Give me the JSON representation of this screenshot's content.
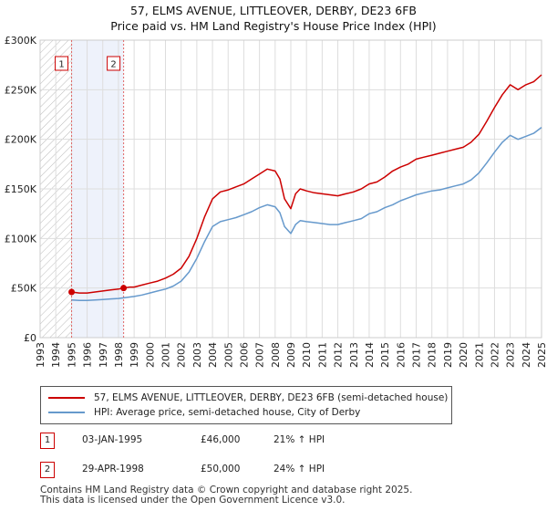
{
  "title": {
    "line1": "57, ELMS AVENUE, LITTLEOVER, DERBY, DE23 6FB",
    "line2": "Price paid vs. HM Land Registry's House Price Index (HPI)"
  },
  "chart_data": {
    "type": "line",
    "ylim": [
      0,
      300000
    ],
    "xlim": [
      1993,
      2025
    ],
    "y_ticks": [
      {
        "value": 0,
        "label": "£0"
      },
      {
        "value": 50000,
        "label": "£50K"
      },
      {
        "value": 100000,
        "label": "£100K"
      },
      {
        "value": 150000,
        "label": "£150K"
      },
      {
        "value": 200000,
        "label": "£200K"
      },
      {
        "value": 250000,
        "label": "£250K"
      },
      {
        "value": 300000,
        "label": "£300K"
      }
    ],
    "x_ticks": [
      "1993",
      "1994",
      "1995",
      "1996",
      "1997",
      "1998",
      "1999",
      "2000",
      "2001",
      "2002",
      "2003",
      "2004",
      "2005",
      "2006",
      "2007",
      "2008",
      "2009",
      "2010",
      "2011",
      "2012",
      "2013",
      "2014",
      "2015",
      "2016",
      "2017",
      "2018",
      "2019",
      "2020",
      "2021",
      "2022",
      "2023",
      "2024",
      "2025"
    ],
    "grid": true,
    "colors": {
      "property": "#cc0000",
      "hpi": "#6699cc",
      "band": "#eef2fb",
      "marker_line": "#e06666"
    },
    "series": [
      {
        "name": "57, ELMS AVENUE, LITTLEOVER, DERBY, DE23 6FB (semi-detached house)",
        "color": "#cc0000",
        "x": [
          1995.0,
          1995.5,
          1996.0,
          1996.5,
          1997.0,
          1997.5,
          1998.0,
          1998.33,
          1998.7,
          1999.0,
          1999.5,
          2000.0,
          2000.5,
          2001.0,
          2001.5,
          2002.0,
          2002.5,
          2003.0,
          2003.5,
          2004.0,
          2004.5,
          2005.0,
          2005.5,
          2006.0,
          2006.5,
          2007.0,
          2007.5,
          2008.0,
          2008.3,
          2008.6,
          2009.0,
          2009.3,
          2009.6,
          2010.0,
          2010.5,
          2011.0,
          2011.5,
          2012.0,
          2012.5,
          2013.0,
          2013.5,
          2014.0,
          2014.5,
          2015.0,
          2015.5,
          2016.0,
          2016.5,
          2017.0,
          2017.5,
          2018.0,
          2018.5,
          2019.0,
          2019.5,
          2020.0,
          2020.5,
          2021.0,
          2021.5,
          2022.0,
          2022.5,
          2023.0,
          2023.5,
          2024.0,
          2024.5,
          2025.0
        ],
        "values": [
          46000,
          45000,
          45000,
          46000,
          47000,
          48000,
          49000,
          50000,
          51000,
          51000,
          53000,
          55000,
          57000,
          60000,
          64000,
          70000,
          82000,
          100000,
          122000,
          140000,
          147000,
          149000,
          152000,
          155000,
          160000,
          165000,
          170000,
          168000,
          160000,
          140000,
          130000,
          145000,
          150000,
          148000,
          146000,
          145000,
          144000,
          143000,
          145000,
          147000,
          150000,
          155000,
          157000,
          162000,
          168000,
          172000,
          175000,
          180000,
          182000,
          184000,
          186000,
          188000,
          190000,
          192000,
          197000,
          205000,
          218000,
          232000,
          245000,
          255000,
          250000,
          255000,
          258000,
          265000
        ]
      },
      {
        "name": "HPI: Average price, semi-detached house, City of Derby",
        "color": "#6699cc",
        "x": [
          1995.0,
          1995.5,
          1996.0,
          1996.5,
          1997.0,
          1997.5,
          1998.0,
          1998.5,
          1999.0,
          1999.5,
          2000.0,
          2000.5,
          2001.0,
          2001.5,
          2002.0,
          2002.5,
          2003.0,
          2003.5,
          2004.0,
          2004.5,
          2005.0,
          2005.5,
          2006.0,
          2006.5,
          2007.0,
          2007.5,
          2008.0,
          2008.3,
          2008.6,
          2009.0,
          2009.3,
          2009.6,
          2010.0,
          2010.5,
          2011.0,
          2011.5,
          2012.0,
          2012.5,
          2013.0,
          2013.5,
          2014.0,
          2014.5,
          2015.0,
          2015.5,
          2016.0,
          2016.5,
          2017.0,
          2017.5,
          2018.0,
          2018.5,
          2019.0,
          2019.5,
          2020.0,
          2020.5,
          2021.0,
          2021.5,
          2022.0,
          2022.5,
          2023.0,
          2023.5,
          2024.0,
          2024.5,
          2025.0
        ],
        "values": [
          38000,
          37500,
          37500,
          38000,
          38500,
          39000,
          39500,
          40500,
          41500,
          43000,
          45000,
          47000,
          49000,
          52000,
          57000,
          66000,
          80000,
          97000,
          112000,
          117000,
          119000,
          121000,
          124000,
          127000,
          131000,
          134000,
          132000,
          126000,
          112000,
          105000,
          114000,
          118000,
          117000,
          116000,
          115000,
          114000,
          114000,
          116000,
          118000,
          120000,
          125000,
          127000,
          131000,
          134000,
          138000,
          141000,
          144000,
          146000,
          148000,
          149000,
          151000,
          153000,
          155000,
          159000,
          166000,
          176000,
          187000,
          197000,
          204000,
          200000,
          203000,
          206000,
          212000
        ]
      }
    ],
    "sales": [
      {
        "label": "1",
        "date": "03-JAN-1995",
        "x": 1995.01,
        "price": 46000,
        "price_label": "£46,000",
        "hpi_label": "21% ↑ HPI"
      },
      {
        "label": "2",
        "date": "29-APR-1998",
        "x": 1998.33,
        "price": 50000,
        "price_label": "£50,000",
        "hpi_label": "24% ↑ HPI"
      }
    ],
    "hatch_before": 1995.0,
    "shaded_between": [
      1995.0,
      1998.33
    ]
  },
  "legend": {
    "items": [
      {
        "label": "57, ELMS AVENUE, LITTLEOVER, DERBY, DE23 6FB (semi-detached house)",
        "color": "#cc0000"
      },
      {
        "label": "HPI: Average price, semi-detached house, City of Derby",
        "color": "#6699cc"
      }
    ]
  },
  "footer": {
    "line1": "Contains HM Land Registry data © Crown copyright and database right 2025.",
    "line2": "This data is licensed under the Open Government Licence v3.0."
  }
}
